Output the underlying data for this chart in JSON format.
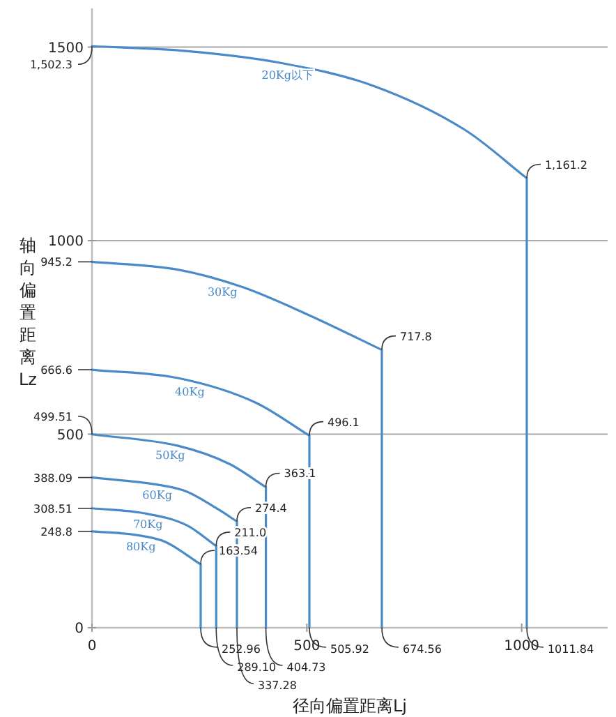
{
  "chart_data": {
    "type": "line",
    "xlabel": "径向偏置距离Lj",
    "ylabel": "轴向偏置距离Lz",
    "xlim": [
      0,
      1200
    ],
    "ylim": [
      0,
      1600
    ],
    "xticks": [
      0,
      500,
      1000
    ],
    "yticks": [
      0,
      500,
      1000,
      1500
    ],
    "grid": "y",
    "line_style": "solid",
    "series": [
      {
        "name": "20Kg以下",
        "color": "#4a8ac8",
        "x": [
          0,
          218,
          435,
          652,
          868,
          1011.84,
          1011.84
        ],
        "values": [
          1502.3,
          1490,
          1460,
          1401,
          1286,
          1161.2,
          0
        ]
      },
      {
        "name": "30Kg",
        "color": "#4a8ac8",
        "x": [
          0,
          200,
          350,
          500,
          674.56,
          674.56
        ],
        "values": [
          945.2,
          925,
          880,
          810,
          717.8,
          0
        ]
      },
      {
        "name": "40Kg",
        "color": "#4a8ac8",
        "x": [
          0,
          200,
          380,
          505.92,
          505.92
        ],
        "values": [
          666.6,
          645,
          582,
          496.1,
          0
        ]
      },
      {
        "name": "50Kg",
        "color": "#4a8ac8",
        "x": [
          0,
          200,
          320,
          404.73,
          404.73
        ],
        "values": [
          499.51,
          470,
          423,
          363.1,
          0
        ]
      },
      {
        "name": "60Kg",
        "color": "#4a8ac8",
        "x": [
          0,
          150,
          220,
          295,
          337.28,
          337.28
        ],
        "values": [
          388.09,
          370,
          352,
          305,
          274.4,
          0
        ]
      },
      {
        "name": "70Kg",
        "color": "#4a8ac8",
        "x": [
          0,
          120,
          220,
          289.1,
          289.1
        ],
        "values": [
          308.51,
          296,
          265,
          211.0,
          0
        ]
      },
      {
        "name": "80Kg",
        "color": "#4a8ac8",
        "x": [
          0,
          100,
          170,
          252.96,
          252.96
        ],
        "values": [
          248.8,
          240,
          222,
          163.54,
          0
        ]
      }
    ],
    "annotations": [
      {
        "text": "1,502.3",
        "x": 0,
        "y": 1502.3
      },
      {
        "text": "1,161.2",
        "x": 1011.84,
        "y": 1161.2
      },
      {
        "text": "1011.84",
        "x": 1011.84,
        "y": 0
      },
      {
        "text": "945.2",
        "x": 0,
        "y": 945.2
      },
      {
        "text": "717.8",
        "x": 674.56,
        "y": 717.8
      },
      {
        "text": "674.56",
        "x": 674.56,
        "y": 0
      },
      {
        "text": "666.6",
        "x": 0,
        "y": 666.6
      },
      {
        "text": "496.1",
        "x": 505.92,
        "y": 496.1
      },
      {
        "text": "505.92",
        "x": 505.92,
        "y": 0
      },
      {
        "text": "499.51",
        "x": 0,
        "y": 499.51
      },
      {
        "text": "363.1",
        "x": 404.73,
        "y": 363.1
      },
      {
        "text": "404.73",
        "x": 404.73,
        "y": 0
      },
      {
        "text": "388.09",
        "x": 0,
        "y": 388.09
      },
      {
        "text": "274.4",
        "x": 337.28,
        "y": 274.4
      },
      {
        "text": "337.28",
        "x": 337.28,
        "y": 0
      },
      {
        "text": "308.51",
        "x": 0,
        "y": 308.51
      },
      {
        "text": "211.0",
        "x": 289.1,
        "y": 211.0
      },
      {
        "text": "289.10",
        "x": 289.1,
        "y": 0
      },
      {
        "text": "248.8",
        "x": 0,
        "y": 248.8
      },
      {
        "text": "163.54",
        "x": 252.96,
        "y": 163.54
      },
      {
        "text": "252.96",
        "x": 252.96,
        "y": 0
      }
    ]
  }
}
